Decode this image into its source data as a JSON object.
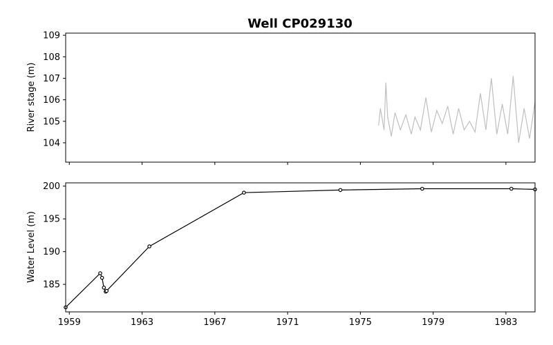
{
  "chart_data": [
    {
      "type": "line",
      "title": "Well CP029130",
      "xlabel": "",
      "ylabel": "River stage (m)",
      "xlim": [
        1958.8,
        1984.6
      ],
      "ylim": [
        103.1,
        109.1
      ],
      "yticks": [
        "104",
        "105",
        "106",
        "107",
        "108",
        "109"
      ],
      "grid": false,
      "series": [
        {
          "color": "#bfbfbf",
          "x": [
            1976.0,
            1976.1,
            1976.3,
            1976.4,
            1976.5,
            1976.7,
            1976.9,
            1977.2,
            1977.5,
            1977.8,
            1978.0,
            1978.3,
            1978.6,
            1978.9,
            1979.2,
            1979.5,
            1979.8,
            1980.1,
            1980.4,
            1980.7,
            1981.0,
            1981.3,
            1981.6,
            1981.9,
            1982.2,
            1982.5,
            1982.8,
            1983.1,
            1983.4,
            1983.7,
            1984.0,
            1984.3,
            1984.6
          ],
          "values": [
            104.8,
            105.6,
            104.6,
            106.8,
            105.2,
            104.3,
            105.4,
            104.6,
            105.3,
            104.4,
            105.2,
            104.6,
            106.1,
            104.5,
            105.5,
            104.9,
            105.7,
            104.4,
            105.6,
            104.6,
            105.0,
            104.5,
            106.3,
            104.6,
            107.0,
            104.4,
            105.8,
            104.4,
            107.1,
            104.0,
            105.6,
            104.2,
            105.9
          ]
        }
      ]
    },
    {
      "type": "line",
      "xlabel": "",
      "ylabel": "Water Level (m)",
      "xlim": [
        1958.8,
        1984.6
      ],
      "ylim": [
        180.8,
        200.5
      ],
      "yticks": [
        "185",
        "190",
        "195",
        "200"
      ],
      "xticks": [
        "1959",
        "1963",
        "1967",
        "1971",
        "1975",
        "1979",
        "1983"
      ],
      "grid": false,
      "series": [
        {
          "color": "#000000",
          "marker": "circle",
          "x": [
            1958.8,
            1960.7,
            1960.8,
            1960.9,
            1961.0,
            1961.05,
            1963.4,
            1968.6,
            1973.9,
            1978.4,
            1983.3,
            1984.6
          ],
          "values": [
            181.5,
            186.7,
            186.0,
            184.5,
            183.9,
            184.0,
            190.8,
            199.0,
            199.4,
            199.6,
            199.6,
            199.5
          ]
        }
      ]
    }
  ]
}
